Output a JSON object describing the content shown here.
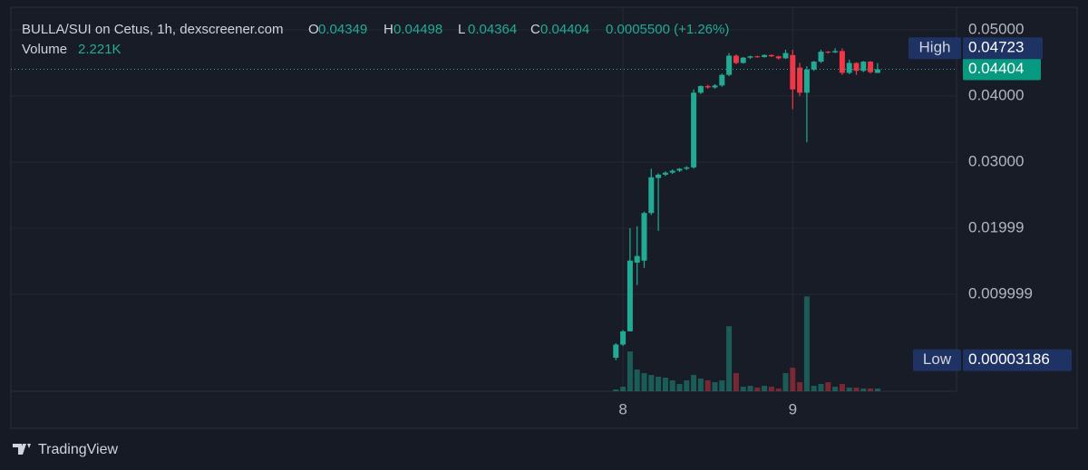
{
  "chart_data": {
    "type": "candlestick",
    "title": "BULLA/SUI on Cetus, 1h, dexscreener.com",
    "ohlc_letters": [
      "O",
      "H",
      "L",
      "C"
    ],
    "change": "0.0005500 (+1.26%)",
    "categories": [
      null,
      "8",
      null,
      null,
      null,
      null,
      null,
      null,
      null,
      null,
      null,
      null,
      null,
      null,
      null,
      null,
      null,
      null,
      null,
      null,
      null,
      null,
      null,
      null,
      null,
      "9",
      null,
      null,
      null,
      null,
      null,
      null,
      null,
      null,
      null,
      null,
      null,
      null
    ],
    "open": [
      0.0004,
      0.0024,
      0.0044,
      0.0148,
      0.0151,
      0.0223,
      0.0276,
      0.0281,
      0.0284,
      0.0287,
      0.029,
      0.0292,
      0.0405,
      0.0415,
      0.0413,
      0.0416,
      0.0432,
      0.0461,
      0.045,
      0.0458,
      0.046,
      0.0459,
      0.0462,
      0.046,
      0.0457,
      0.0462,
      0.0443,
      0.0405,
      0.044,
      0.0452,
      0.0467,
      0.0466,
      0.0468,
      0.0435,
      0.045,
      0.0438,
      0.0452,
      0.04349
    ],
    "high": [
      0.0026,
      0.0046,
      0.02,
      0.0203,
      0.0225,
      0.029,
      0.0283,
      0.0286,
      0.0289,
      0.0291,
      0.0294,
      0.041,
      0.0416,
      0.0417,
      0.0418,
      0.0434,
      0.0465,
      0.0463,
      0.0459,
      0.0461,
      0.0461,
      0.0463,
      0.0463,
      0.0461,
      0.047,
      0.047,
      0.045,
      0.0445,
      0.0453,
      0.047,
      0.0468,
      0.04723,
      0.0472,
      0.0455,
      0.0451,
      0.0453,
      0.0453,
      0.04498
    ],
    "low": [
      3.186e-05,
      0.0022,
      0.0044,
      0.0114,
      0.014,
      0.022,
      0.0196,
      0.0279,
      0.0282,
      0.0285,
      0.0288,
      0.029,
      0.0403,
      0.0411,
      0.0411,
      0.0414,
      0.043,
      0.0448,
      0.0449,
      0.0456,
      0.0458,
      0.0458,
      0.0459,
      0.0455,
      0.0456,
      0.038,
      0.04,
      0.033,
      0.0438,
      0.045,
      0.0464,
      0.0465,
      0.0432,
      0.0433,
      0.0432,
      0.0436,
      0.0434,
      0.04364
    ],
    "close": [
      0.0024,
      0.0044,
      0.0151,
      0.0158,
      0.0223,
      0.0277,
      0.0281,
      0.0284,
      0.0287,
      0.029,
      0.0292,
      0.0405,
      0.0415,
      0.0413,
      0.0416,
      0.0432,
      0.0461,
      0.045,
      0.0458,
      0.046,
      0.0459,
      0.0462,
      0.046,
      0.0457,
      0.0465,
      0.041,
      0.0405,
      0.044,
      0.0452,
      0.0467,
      0.0466,
      0.0468,
      0.0435,
      0.045,
      0.0438,
      0.0452,
      0.0436,
      0.04404
    ],
    "up_color": "#22ab94",
    "down_color": "#f23645",
    "volume": {
      "name": "Volume",
      "values": [
        1480,
        3700,
        32560,
        17760,
        14800,
        13320,
        11840,
        11100,
        8880,
        5920,
        8880,
        13320,
        10360,
        8880,
        7400,
        8880,
        53280,
        14800,
        3700,
        4440,
        2960,
        4440,
        3700,
        2220,
        14800,
        19240,
        7400,
        77700,
        4440,
        5920,
        7400,
        3700,
        5920,
        2960,
        2960,
        2220,
        2220,
        2221
      ],
      "value_labels": [
        null,
        null,
        null,
        null,
        null,
        null,
        null,
        null,
        null,
        null,
        null,
        null,
        null,
        null,
        null,
        null,
        null,
        null,
        null,
        null,
        null,
        null,
        null,
        null,
        null,
        null,
        null,
        null,
        null,
        null,
        null,
        null,
        null,
        null,
        null,
        null,
        null,
        "2.221K"
      ],
      "ylim": [
        0,
        150000
      ]
    },
    "high_marker": {
      "label": "High",
      "value": 0.04723
    },
    "low_marker": {
      "label": "Low",
      "value": 3.186e-05
    },
    "ylim": [
      -0.00466,
      0.05247
    ],
    "yticks": [
      {
        "value": 0.05,
        "label": "0.05000"
      },
      {
        "value": 0.04,
        "label": "0.04000"
      },
      {
        "value": 0.03,
        "label": "0.03000"
      },
      0.01999,
      0.009999
    ],
    "grid": true,
    "footer": "TradingView"
  }
}
